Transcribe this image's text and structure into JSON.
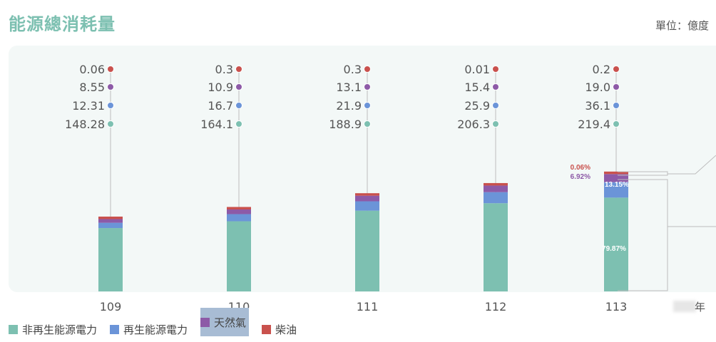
{
  "header": {
    "title": "能源總消耗量",
    "unit": "單位：億度"
  },
  "axis": {
    "year_suffix": "年"
  },
  "colors": {
    "non_renewable": "#7dc0b1",
    "renewable": "#6b94d8",
    "natural_gas": "#8d5aa7",
    "diesel": "#c9514d"
  },
  "chart_data": {
    "type": "bar",
    "stacked": true,
    "title": "能源總消耗量",
    "unit": "億度",
    "categories": [
      "109",
      "110",
      "111",
      "112",
      "113"
    ],
    "series": [
      {
        "name": "非再生能源電力",
        "values": [
          148.28,
          164.1,
          188.9,
          206.3,
          219.4
        ]
      },
      {
        "name": "再生能源電力",
        "values": [
          12.31,
          16.7,
          21.9,
          25.9,
          36.1
        ]
      },
      {
        "name": "天然氣",
        "values": [
          8.55,
          10.9,
          13.1,
          15.4,
          19.0
        ]
      },
      {
        "name": "柴油",
        "values": [
          0.06,
          0.3,
          0.3,
          0.01,
          0.2
        ]
      }
    ],
    "value_labels": [
      [
        "148.28",
        "12.31",
        "8.55",
        "0.06"
      ],
      [
        "164.1",
        "16.7",
        "10.9",
        "0.3"
      ],
      [
        "188.9",
        "21.9",
        "13.1",
        "0.3"
      ],
      [
        "206.3",
        "25.9",
        "15.4",
        "0.01"
      ],
      [
        "219.4",
        "36.1",
        "19.0",
        "0.2"
      ]
    ],
    "percent_labels_113": {
      "non_renewable": "79.87%",
      "renewable": "13.15%",
      "natural_gas": "6.92%",
      "diesel": "0.06%"
    },
    "legend_position": "bottom-left",
    "grid": false
  },
  "legend": {
    "items": [
      {
        "label": "非再生能源電力",
        "color": "#7dc0b1"
      },
      {
        "label": "再生能源電力",
        "color": "#6b94d8"
      },
      {
        "label": "天然氣",
        "color": "#8d5aa7"
      },
      {
        "label": "柴油",
        "color": "#c9514d"
      }
    ]
  }
}
